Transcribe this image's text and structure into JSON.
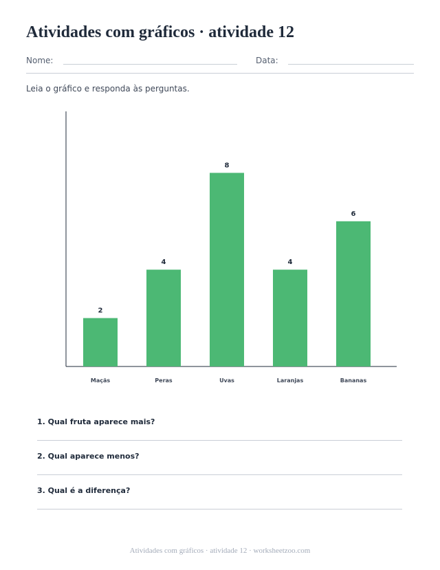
{
  "header": {
    "title": "Atividades com gráficos · atividade 12",
    "name_label": "Nome:",
    "date_label": "Data:"
  },
  "instructions": "Leia o gráfico e responda às perguntas.",
  "chart_data": {
    "type": "bar",
    "categories": [
      "Maçãs",
      "Peras",
      "Uvas",
      "Laranjas",
      "Bananas"
    ],
    "values": [
      2,
      4,
      8,
      4,
      6
    ],
    "data_labels": [
      "2",
      "4",
      "8",
      "4",
      "6"
    ],
    "ylim": [
      0,
      10
    ],
    "grid": false,
    "bar_color": "#4cb874",
    "title": "",
    "xlabel": "",
    "ylabel": ""
  },
  "questions": [
    "1. Qual fruta aparece mais?",
    "2. Qual aparece menos?",
    "3. Qual é a diferença?"
  ],
  "footer": "Atividades com gráficos · atividade 12 · worksheetzoo.com"
}
